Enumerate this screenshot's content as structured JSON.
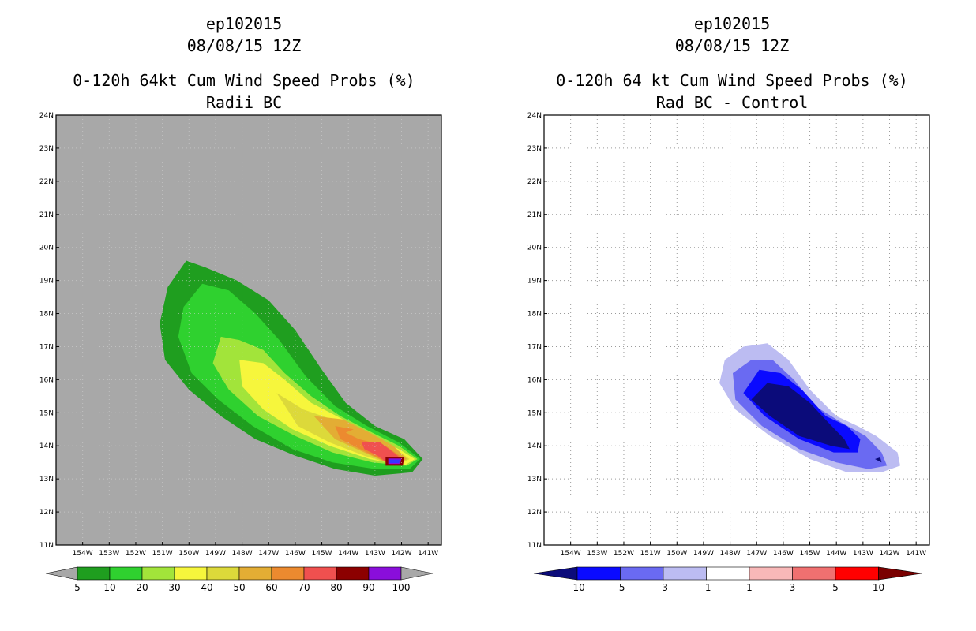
{
  "chart_data": [
    {
      "type": "contour",
      "storm_id": "ep102015",
      "datetime": "08/08/15 12Z",
      "title": "0-120h 64kt Cum Wind Speed Probs (%)",
      "subtitle": "Radii BC",
      "colors": {
        "background": "#a8a8a8"
      },
      "lat_ticks": [
        "11N",
        "12N",
        "13N",
        "14N",
        "15N",
        "16N",
        "17N",
        "18N",
        "19N",
        "20N",
        "21N",
        "22N",
        "23N",
        "24N"
      ],
      "lon_ticks": [
        "154W",
        "153W",
        "152W",
        "151W",
        "150W",
        "149W",
        "148W",
        "147W",
        "146W",
        "145W",
        "144W",
        "143W",
        "142W",
        "141W"
      ],
      "colorbar": {
        "labels": [
          "5",
          "10",
          "20",
          "30",
          "40",
          "50",
          "60",
          "70",
          "80",
          "90",
          "100"
        ],
        "colors": [
          "#1f9e1f",
          "#2fd12f",
          "#a2e43a",
          "#f6f63c",
          "#dcd93a",
          "#e3ad34",
          "#ec8a2f",
          "#f0504f",
          "#8c0000",
          "#8a0edb"
        ]
      },
      "contours": [
        {
          "level": 5,
          "color": "#1f9e1f",
          "points": [
            [
              -150.1,
              19.6
            ],
            [
              -149.4,
              19.4
            ],
            [
              -148.2,
              19.0
            ],
            [
              -147.0,
              18.4
            ],
            [
              -146.0,
              17.5
            ],
            [
              -145.0,
              16.3
            ],
            [
              -144.1,
              15.3
            ],
            [
              -143.0,
              14.6
            ],
            [
              -141.9,
              14.2
            ],
            [
              -141.2,
              13.6
            ],
            [
              -141.6,
              13.2
            ],
            [
              -143.0,
              13.1
            ],
            [
              -144.5,
              13.3
            ],
            [
              -146.0,
              13.7
            ],
            [
              -147.5,
              14.2
            ],
            [
              -148.8,
              14.9
            ],
            [
              -150.0,
              15.7
            ],
            [
              -150.9,
              16.6
            ],
            [
              -151.1,
              17.7
            ],
            [
              -150.8,
              18.8
            ]
          ]
        },
        {
          "level": 10,
          "color": "#2fd12f",
          "points": [
            [
              -149.5,
              18.9
            ],
            [
              -148.5,
              18.7
            ],
            [
              -147.5,
              18.0
            ],
            [
              -146.6,
              17.2
            ],
            [
              -145.6,
              16.1
            ],
            [
              -144.5,
              15.2
            ],
            [
              -143.3,
              14.6
            ],
            [
              -142.1,
              14.1
            ],
            [
              -141.3,
              13.6
            ],
            [
              -141.7,
              13.3
            ],
            [
              -143.0,
              13.3
            ],
            [
              -144.6,
              13.5
            ],
            [
              -146.1,
              13.9
            ],
            [
              -147.6,
              14.6
            ],
            [
              -148.9,
              15.4
            ],
            [
              -149.9,
              16.2
            ],
            [
              -150.4,
              17.3
            ],
            [
              -150.2,
              18.2
            ]
          ]
        },
        {
          "level": 20,
          "color": "#a2e43a",
          "points": [
            [
              -148.8,
              17.3
            ],
            [
              -148.1,
              17.2
            ],
            [
              -147.2,
              16.9
            ],
            [
              -146.4,
              16.2
            ],
            [
              -145.4,
              15.5
            ],
            [
              -144.3,
              14.9
            ],
            [
              -143.1,
              14.4
            ],
            [
              -142.1,
              14.0
            ],
            [
              -141.4,
              13.6
            ],
            [
              -141.8,
              13.4
            ],
            [
              -143.1,
              13.5
            ],
            [
              -144.6,
              13.8
            ],
            [
              -146.0,
              14.3
            ],
            [
              -147.4,
              14.9
            ],
            [
              -148.5,
              15.7
            ],
            [
              -149.1,
              16.5
            ]
          ]
        },
        {
          "level": 30,
          "color": "#f6f63c",
          "points": [
            [
              -148.1,
              16.6
            ],
            [
              -147.2,
              16.5
            ],
            [
              -146.4,
              16.0
            ],
            [
              -145.4,
              15.3
            ],
            [
              -144.2,
              14.8
            ],
            [
              -143.1,
              14.3
            ],
            [
              -142.1,
              13.9
            ],
            [
              -141.5,
              13.6
            ],
            [
              -141.9,
              13.4
            ],
            [
              -143.2,
              13.6
            ],
            [
              -144.7,
              14.0
            ],
            [
              -146.1,
              14.5
            ],
            [
              -147.2,
              15.1
            ],
            [
              -148.0,
              15.8
            ]
          ]
        },
        {
          "level": 40,
          "color": "#dcd93a",
          "points": [
            [
              -146.7,
              15.6
            ],
            [
              -145.7,
              15.1
            ],
            [
              -144.6,
              14.8
            ],
            [
              -143.5,
              14.5
            ],
            [
              -142.4,
              14.0
            ],
            [
              -141.7,
              13.6
            ],
            [
              -142.2,
              13.4
            ],
            [
              -143.4,
              13.7
            ],
            [
              -144.7,
              14.1
            ],
            [
              -145.9,
              14.6
            ]
          ]
        },
        {
          "level": 50,
          "color": "#e3ad34",
          "points": [
            [
              -145.3,
              14.9
            ],
            [
              -144.2,
              14.8
            ],
            [
              -143.2,
              14.4
            ],
            [
              -142.3,
              14.0
            ],
            [
              -141.8,
              13.6
            ],
            [
              -142.3,
              13.4
            ],
            [
              -143.4,
              13.8
            ],
            [
              -144.5,
              14.2
            ]
          ]
        },
        {
          "level": 60,
          "color": "#ec8a2f",
          "points": [
            [
              -144.5,
              14.6
            ],
            [
              -143.8,
              14.5
            ],
            [
              -144.1,
              14.4
            ],
            [
              -143.6,
              14.2
            ],
            [
              -142.6,
              14.0
            ],
            [
              -141.9,
              13.6
            ],
            [
              -142.3,
              13.4
            ],
            [
              -143.3,
              13.8
            ],
            [
              -144.3,
              14.2
            ]
          ]
        },
        {
          "level": 70,
          "color": "#f0504f",
          "points": [
            [
              -143.5,
              14.1
            ],
            [
              -142.8,
              14.1
            ],
            [
              -142.3,
              13.8
            ],
            [
              -142.0,
              13.6
            ],
            [
              -142.4,
              13.4
            ],
            [
              -142.9,
              13.7
            ],
            [
              -143.4,
              13.9
            ]
          ]
        },
        {
          "level": 80,
          "color": "#8c0000",
          "points": [
            [
              -142.6,
              13.65
            ],
            [
              -141.9,
              13.65
            ],
            [
              -141.95,
              13.4
            ],
            [
              -142.6,
              13.4
            ]
          ]
        },
        {
          "level": 90,
          "color": "#8a0edb",
          "points": [
            [
              -142.5,
              13.62
            ],
            [
              -142.0,
              13.62
            ],
            [
              -142.05,
              13.45
            ],
            [
              -142.5,
              13.45
            ]
          ]
        },
        {
          "level": 100,
          "color": "#3535ff",
          "points": [
            [
              -142.45,
              13.58
            ],
            [
              -142.05,
              13.58
            ],
            [
              -142.1,
              13.48
            ],
            [
              -142.45,
              13.48
            ]
          ]
        }
      ]
    },
    {
      "type": "contour",
      "storm_id": "ep102015",
      "datetime": "08/08/15 12Z",
      "title": "0-120h 64 kt Cum Wind Speed Probs (%)",
      "subtitle": "Rad BC - Control",
      "colors": {
        "background": "#ffffff"
      },
      "lat_ticks": [
        "11N",
        "12N",
        "13N",
        "14N",
        "15N",
        "16N",
        "17N",
        "18N",
        "19N",
        "20N",
        "21N",
        "22N",
        "23N",
        "24N"
      ],
      "lon_ticks": [
        "154W",
        "153W",
        "152W",
        "151W",
        "150W",
        "149W",
        "148W",
        "147W",
        "146W",
        "145W",
        "144W",
        "143W",
        "142W",
        "141W"
      ],
      "colorbar": {
        "labels": [
          "-10",
          "-5",
          "-3",
          "-1",
          "1",
          "3",
          "5",
          "10"
        ],
        "colors": [
          "#0b0b7a",
          "#0a0aff",
          "#6a6af2",
          "#bcbcf2",
          "#ffffff",
          "#f8b8b8",
          "#f07070",
          "#ff0000",
          "#7a0000"
        ]
      },
      "contours": [
        {
          "level": -1,
          "color": "#bcbcf2",
          "points": [
            [
              -147.5,
              17.0
            ],
            [
              -146.6,
              17.1
            ],
            [
              -145.8,
              16.6
            ],
            [
              -145.0,
              15.7
            ],
            [
              -144.0,
              14.9
            ],
            [
              -143.2,
              14.6
            ],
            [
              -142.5,
              14.3
            ],
            [
              -141.7,
              13.8
            ],
            [
              -141.6,
              13.4
            ],
            [
              -142.3,
              13.2
            ],
            [
              -143.6,
              13.2
            ],
            [
              -145.0,
              13.6
            ],
            [
              -146.5,
              14.3
            ],
            [
              -147.8,
              15.1
            ],
            [
              -148.4,
              15.9
            ],
            [
              -148.2,
              16.6
            ]
          ]
        },
        {
          "level": -3,
          "color": "#6a6af2",
          "points": [
            [
              -147.2,
              16.6
            ],
            [
              -146.4,
              16.6
            ],
            [
              -145.6,
              16.0
            ],
            [
              -144.8,
              15.2
            ],
            [
              -143.8,
              14.7
            ],
            [
              -142.9,
              14.3
            ],
            [
              -142.3,
              13.8
            ],
            [
              -142.1,
              13.4
            ],
            [
              -142.8,
              13.3
            ],
            [
              -144.0,
              13.5
            ],
            [
              -145.4,
              13.9
            ],
            [
              -146.8,
              14.6
            ],
            [
              -147.8,
              15.4
            ],
            [
              -147.9,
              16.2
            ]
          ]
        },
        {
          "level": -5,
          "color": "#0a0aff",
          "points": [
            [
              -146.9,
              16.3
            ],
            [
              -146.1,
              16.2
            ],
            [
              -145.3,
              15.7
            ],
            [
              -144.4,
              14.9
            ],
            [
              -143.6,
              14.6
            ],
            [
              -143.1,
              14.2
            ],
            [
              -143.2,
              13.8
            ],
            [
              -144.1,
              13.8
            ],
            [
              -145.4,
              14.2
            ],
            [
              -146.7,
              14.9
            ],
            [
              -147.5,
              15.6
            ]
          ]
        },
        {
          "level": -10,
          "color": "#0b0b7a",
          "points": [
            [
              -146.6,
              15.9
            ],
            [
              -145.8,
              15.8
            ],
            [
              -145.0,
              15.3
            ],
            [
              -144.3,
              14.7
            ],
            [
              -143.7,
              14.2
            ],
            [
              -143.5,
              13.9
            ],
            [
              -144.2,
              14.0
            ],
            [
              -145.4,
              14.3
            ],
            [
              -146.5,
              14.9
            ],
            [
              -147.2,
              15.4
            ]
          ]
        },
        {
          "level": -10,
          "color": "#0b0b7a",
          "points": [
            [
              -142.55,
              13.6
            ],
            [
              -142.35,
              13.65
            ],
            [
              -142.3,
              13.5
            ]
          ]
        }
      ]
    }
  ]
}
